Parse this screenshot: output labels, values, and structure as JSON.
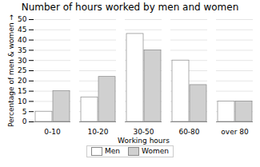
{
  "chart_data": {
    "type": "bar",
    "title": "Number of hours worked by men and women",
    "xlabel": "Working hours",
    "ylabel": "Percentage of men & women",
    "categories": [
      "0-10",
      "10-20",
      "30-50",
      "60-80",
      "over 80"
    ],
    "series": [
      {
        "name": "Men",
        "color": "white",
        "values": [
          5,
          12,
          43,
          30,
          10
        ]
      },
      {
        "name": "Women",
        "color": "#d0d0d0",
        "values": [
          15,
          22,
          35,
          18,
          10
        ]
      }
    ],
    "ylim": [
      0,
      50
    ],
    "yticks": [
      0,
      5,
      10,
      15,
      20,
      25,
      30,
      35,
      40,
      45,
      50
    ],
    "grid": true,
    "legend": "bottom"
  }
}
